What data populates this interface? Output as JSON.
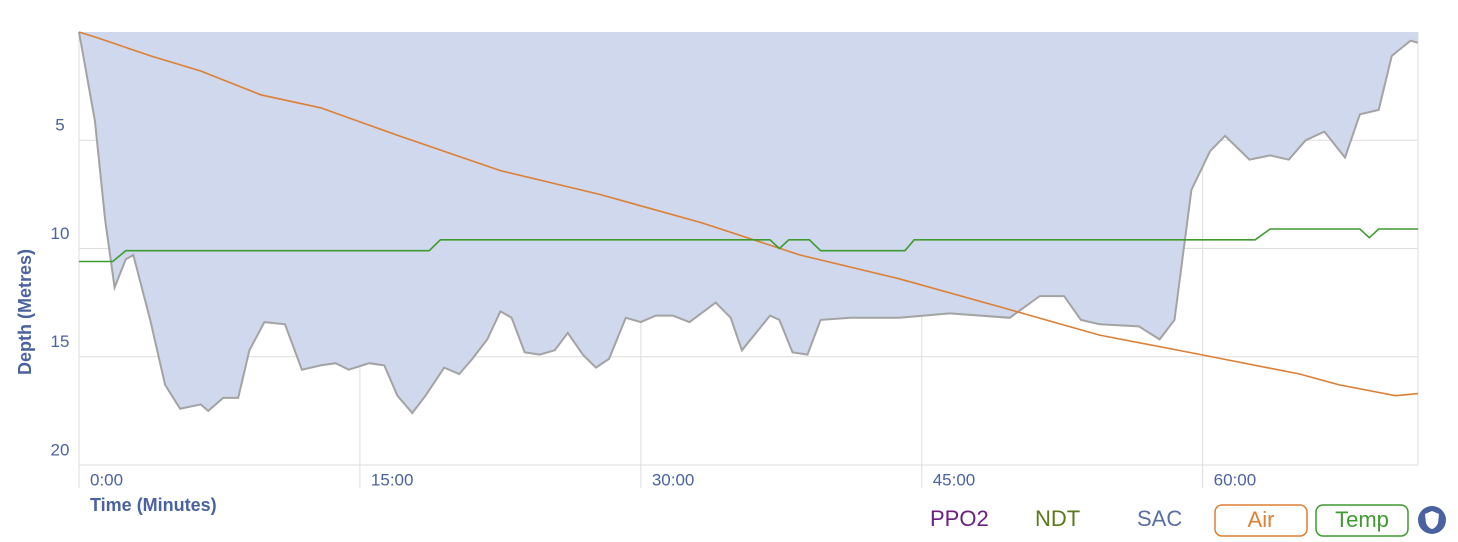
{
  "chart_data": {
    "type": "area",
    "y_label": "Depth (Metres)",
    "x_label": "Time (Minutes)",
    "xlim": [
      0,
      71.5
    ],
    "xticks": [
      {
        "value": 0,
        "label": "0:00"
      },
      {
        "value": 15,
        "label": "15:00"
      },
      {
        "value": 30,
        "label": "30:00"
      },
      {
        "value": 45,
        "label": "45:00"
      },
      {
        "value": 60,
        "label": "60:00"
      }
    ],
    "ylim": [
      0,
      20
    ],
    "yticks": [
      5,
      10,
      15,
      20
    ],
    "y_reversed": true,
    "grid": true,
    "color": "#cfd8ec",
    "line_color": "#a3a3a3",
    "x": [
      0,
      0.85,
      1.4,
      1.9,
      2.5,
      2.9,
      3.8,
      4.6,
      5.4,
      6.5,
      6.9,
      7.7,
      8.5,
      9.1,
      9.9,
      11.0,
      11.9,
      12.9,
      13.7,
      14.4,
      15.5,
      16.3,
      17.0,
      17.8,
      18.5,
      19.5,
      20.3,
      21.0,
      21.8,
      22.5,
      23.1,
      23.8,
      24.6,
      25.4,
      26.1,
      26.9,
      27.6,
      28.3,
      29.2,
      30.0,
      30.8,
      31.7,
      32.6,
      34.0,
      34.8,
      35.4,
      36.9,
      37.4,
      38.1,
      38.9,
      39.6,
      41.2,
      43.8,
      46.5,
      49.7,
      51.3,
      52.6,
      53.5,
      54.5,
      56.6,
      57.7,
      58.5,
      59.4,
      60.4,
      61.2,
      62.5,
      63.6,
      64.6,
      65.5,
      66.5,
      67.6,
      68.4,
      69.4,
      70.1,
      71.1,
      71.5
    ],
    "values": [
      0,
      4.1,
      8.7,
      11.8,
      10.5,
      10.3,
      13.3,
      16.3,
      17.4,
      17.2,
      17.5,
      16.9,
      16.9,
      14.7,
      13.4,
      13.5,
      15.6,
      15.4,
      15.3,
      15.6,
      15.3,
      15.4,
      16.8,
      17.6,
      16.8,
      15.5,
      15.8,
      15.1,
      14.2,
      12.9,
      13.2,
      14.8,
      14.9,
      14.7,
      13.9,
      14.9,
      15.5,
      15.1,
      13.2,
      13.4,
      13.1,
      13.1,
      13.4,
      12.5,
      13.2,
      14.7,
      13.1,
      13.3,
      14.8,
      14.9,
      13.3,
      13.2,
      13.2,
      13.0,
      13.2,
      12.2,
      12.2,
      13.3,
      13.5,
      13.6,
      14.2,
      13.3,
      7.3,
      5.5,
      4.8,
      5.9,
      5.7,
      5.9,
      5.0,
      4.6,
      5.8,
      3.8,
      3.6,
      1.1,
      0.4,
      0.5
    ],
    "series": [
      {
        "name": "Air",
        "color": "#dd7f35",
        "x": [
          0,
          1.1,
          3.8,
          6.5,
          9.7,
          12.9,
          17.1,
          22.5,
          27.8,
          33.2,
          38.5,
          43.8,
          49.2,
          54.5,
          59.9,
          65.2,
          67.3,
          70.3,
          71.5
        ],
        "values": [
          0,
          0.3,
          1.1,
          1.8,
          2.9,
          3.5,
          4.8,
          6.4,
          7.5,
          8.8,
          10.3,
          11.4,
          12.7,
          14.0,
          14.9,
          15.8,
          16.3,
          16.8,
          16.7
        ]
      },
      {
        "name": "Temp",
        "color": "#3f9a30",
        "x": [
          0,
          1.8,
          2.5,
          18.7,
          19.3,
          36.9,
          37.4,
          37.9,
          39.0,
          39.6,
          44.1,
          44.6,
          62.8,
          63.6,
          68.4,
          68.9,
          69.4,
          71.5
        ],
        "values": [
          10.6,
          10.6,
          10.1,
          10.1,
          9.6,
          9.6,
          10.0,
          9.6,
          9.6,
          10.1,
          10.1,
          9.6,
          9.6,
          9.1,
          9.1,
          9.5,
          9.1,
          9.1
        ]
      }
    ],
    "legend_items": [
      {
        "name": "PPO2",
        "color": "#6b1f80"
      },
      {
        "name": "NDT",
        "color": "#5b7a1c"
      },
      {
        "name": "SAC",
        "color": "#5a6fa3"
      }
    ]
  }
}
